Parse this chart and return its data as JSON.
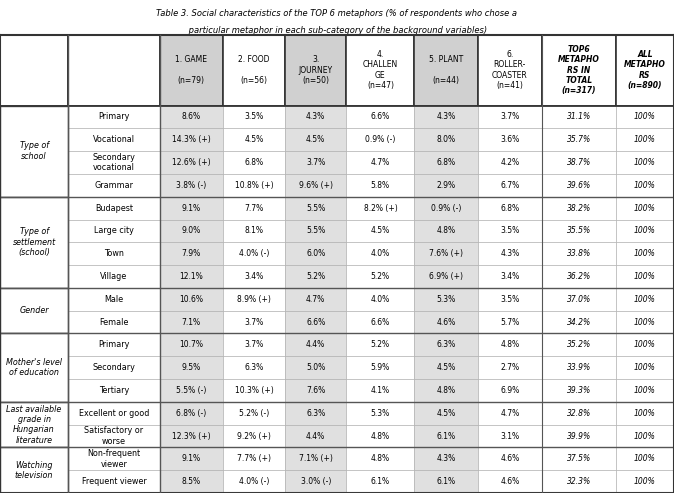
{
  "title_line1": "Table 3. Social characteristics of the TOP 6 metaphors (% of respondents who chose a",
  "title_line2": " particular metaphor in each sub-category of the background variables)",
  "col_headers_line1": [
    "1. GAME",
    "2. FOOD",
    "3.",
    "4.",
    "5. PLANT",
    "6.",
    "TOP6",
    "ALL"
  ],
  "col_headers_line2": [
    "",
    "",
    "JOURNEY",
    "CHALLEN",
    "",
    "ROLLER-",
    "METAPHO",
    "METAPHO"
  ],
  "col_headers_line3": [
    "(n=79)",
    "(n=56)",
    "(n=50)",
    "GE",
    "(n=44)",
    "COASTER",
    "RS IN",
    "RS"
  ],
  "col_headers_line4": [
    "",
    "",
    "",
    "(n=47)",
    "",
    "(n=41)",
    "TOTAL",
    "(n=890)"
  ],
  "col_headers_line5": [
    "",
    "",
    "",
    "",
    "",
    "",
    "(n=317)",
    ""
  ],
  "row_groups": [
    {
      "group_label": [
        "Type of",
        "school"
      ],
      "rows": [
        [
          "Primary",
          "8.6%",
          "3.5%",
          "4.3%",
          "6.6%",
          "4.3%",
          "3.7%",
          "31.1%",
          "100%"
        ],
        [
          "Vocational",
          "14.3% (+)",
          "4.5%",
          "4.5%",
          "0.9% (-)",
          "8.0%",
          "3.6%",
          "35.7%",
          "100%"
        ],
        [
          "Secondary\nvocational",
          "12.6% (+)",
          "6.8%",
          "3.7%",
          "4.7%",
          "6.8%",
          "4.2%",
          "38.7%",
          "100%"
        ],
        [
          "Grammar",
          "3.8% (-)",
          "10.8% (+)",
          "9.6% (+)",
          "5.8%",
          "2.9%",
          "6.7%",
          "39.6%",
          "100%"
        ]
      ]
    },
    {
      "group_label": [
        "Type of",
        "settlement",
        "(school)"
      ],
      "rows": [
        [
          "Budapest",
          "9.1%",
          "7.7%",
          "5.5%",
          "8.2% (+)",
          "0.9% (-)",
          "6.8%",
          "38.2%",
          "100%"
        ],
        [
          "Large city",
          "9.0%",
          "8.1%",
          "5.5%",
          "4.5%",
          "4.8%",
          "3.5%",
          "35.5%",
          "100%"
        ],
        [
          "Town",
          "7.9%",
          "4.0% (-)",
          "6.0%",
          "4.0%",
          "7.6% (+)",
          "4.3%",
          "33.8%",
          "100%"
        ],
        [
          "Village",
          "12.1%",
          "3.4%",
          "5.2%",
          "5.2%",
          "6.9% (+)",
          "3.4%",
          "36.2%",
          "100%"
        ]
      ]
    },
    {
      "group_label": [
        "Gender"
      ],
      "rows": [
        [
          "Male",
          "10.6%",
          "8.9% (+)",
          "4.7%",
          "4.0%",
          "5.3%",
          "3.5%",
          "37.0%",
          "100%"
        ],
        [
          "Female",
          "7.1%",
          "3.7%",
          "6.6%",
          "6.6%",
          "4.6%",
          "5.7%",
          "34.2%",
          "100%"
        ]
      ]
    },
    {
      "group_label": [
        "Mother's level",
        "of education"
      ],
      "rows": [
        [
          "Primary",
          "10.7%",
          "3.7%",
          "4.4%",
          "5.2%",
          "6.3%",
          "4.8%",
          "35.2%",
          "100%"
        ],
        [
          "Secondary",
          "9.5%",
          "6.3%",
          "5.0%",
          "5.9%",
          "4.5%",
          "2.7%",
          "33.9%",
          "100%"
        ],
        [
          "Tertiary",
          "5.5% (-)",
          "10.3% (+)",
          "7.6%",
          "4.1%",
          "4.8%",
          "6.9%",
          "39.3%",
          "100%"
        ]
      ]
    },
    {
      "group_label": [
        "Last available",
        "grade in",
        "Hungarian",
        "literature"
      ],
      "rows": [
        [
          "Excellent or good",
          "6.8% (-)",
          "5.2% (-)",
          "6.3%",
          "5.3%",
          "4.5%",
          "4.7%",
          "32.8%",
          "100%"
        ],
        [
          "Satisfactory or\nworse",
          "12.3% (+)",
          "9.2% (+)",
          "4.4%",
          "4.8%",
          "6.1%",
          "3.1%",
          "39.9%",
          "100%"
        ]
      ]
    },
    {
      "group_label": [
        "Watching",
        "television"
      ],
      "rows": [
        [
          "Non-frequent\nviewer",
          "9.1%",
          "7.7% (+)",
          "7.1% (+)",
          "4.8%",
          "4.3%",
          "4.6%",
          "37.5%",
          "100%"
        ],
        [
          "Frequent viewer",
          "8.5%",
          "4.0% (-)",
          "3.0% (-)",
          "6.1%",
          "6.1%",
          "4.6%",
          "32.3%",
          "100%"
        ]
      ]
    }
  ],
  "gray_data_cols": [
    0,
    2,
    4
  ],
  "italic_data_cols": [
    6,
    7
  ],
  "gray_header_bg": "#d0d0d0",
  "gray_cell_bg": "#e0e0e0",
  "white_bg": "#ffffff",
  "thick_line_color": "#333333",
  "thin_line_color": "#aaaaaa",
  "group_border_color": "#555555"
}
